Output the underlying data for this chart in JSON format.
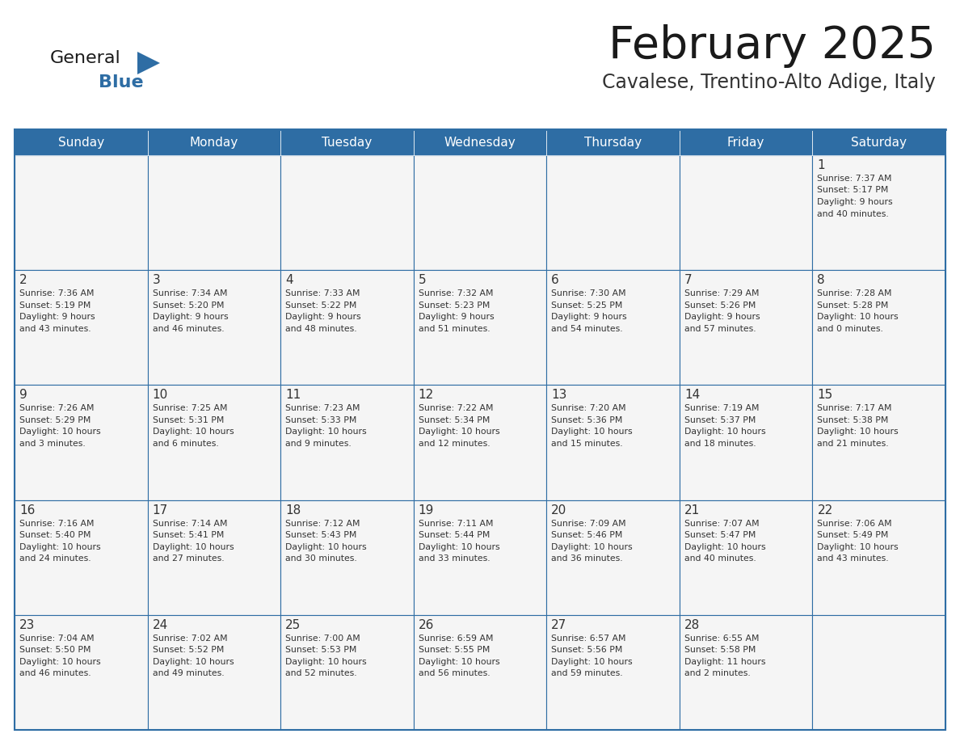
{
  "title": "February 2025",
  "subtitle": "Cavalese, Trentino-Alto Adige, Italy",
  "header_bg": "#2E6DA4",
  "header_text": "#FFFFFF",
  "cell_bg": "#F5F5F5",
  "cell_text": "#333333",
  "border_color": "#2E6DA4",
  "days_of_week": [
    "Sunday",
    "Monday",
    "Tuesday",
    "Wednesday",
    "Thursday",
    "Friday",
    "Saturday"
  ],
  "weeks": [
    [
      {
        "day": null,
        "info": ""
      },
      {
        "day": null,
        "info": ""
      },
      {
        "day": null,
        "info": ""
      },
      {
        "day": null,
        "info": ""
      },
      {
        "day": null,
        "info": ""
      },
      {
        "day": null,
        "info": ""
      },
      {
        "day": 1,
        "info": "Sunrise: 7:37 AM\nSunset: 5:17 PM\nDaylight: 9 hours\nand 40 minutes."
      }
    ],
    [
      {
        "day": 2,
        "info": "Sunrise: 7:36 AM\nSunset: 5:19 PM\nDaylight: 9 hours\nand 43 minutes."
      },
      {
        "day": 3,
        "info": "Sunrise: 7:34 AM\nSunset: 5:20 PM\nDaylight: 9 hours\nand 46 minutes."
      },
      {
        "day": 4,
        "info": "Sunrise: 7:33 AM\nSunset: 5:22 PM\nDaylight: 9 hours\nand 48 minutes."
      },
      {
        "day": 5,
        "info": "Sunrise: 7:32 AM\nSunset: 5:23 PM\nDaylight: 9 hours\nand 51 minutes."
      },
      {
        "day": 6,
        "info": "Sunrise: 7:30 AM\nSunset: 5:25 PM\nDaylight: 9 hours\nand 54 minutes."
      },
      {
        "day": 7,
        "info": "Sunrise: 7:29 AM\nSunset: 5:26 PM\nDaylight: 9 hours\nand 57 minutes."
      },
      {
        "day": 8,
        "info": "Sunrise: 7:28 AM\nSunset: 5:28 PM\nDaylight: 10 hours\nand 0 minutes."
      }
    ],
    [
      {
        "day": 9,
        "info": "Sunrise: 7:26 AM\nSunset: 5:29 PM\nDaylight: 10 hours\nand 3 minutes."
      },
      {
        "day": 10,
        "info": "Sunrise: 7:25 AM\nSunset: 5:31 PM\nDaylight: 10 hours\nand 6 minutes."
      },
      {
        "day": 11,
        "info": "Sunrise: 7:23 AM\nSunset: 5:33 PM\nDaylight: 10 hours\nand 9 minutes."
      },
      {
        "day": 12,
        "info": "Sunrise: 7:22 AM\nSunset: 5:34 PM\nDaylight: 10 hours\nand 12 minutes."
      },
      {
        "day": 13,
        "info": "Sunrise: 7:20 AM\nSunset: 5:36 PM\nDaylight: 10 hours\nand 15 minutes."
      },
      {
        "day": 14,
        "info": "Sunrise: 7:19 AM\nSunset: 5:37 PM\nDaylight: 10 hours\nand 18 minutes."
      },
      {
        "day": 15,
        "info": "Sunrise: 7:17 AM\nSunset: 5:38 PM\nDaylight: 10 hours\nand 21 minutes."
      }
    ],
    [
      {
        "day": 16,
        "info": "Sunrise: 7:16 AM\nSunset: 5:40 PM\nDaylight: 10 hours\nand 24 minutes."
      },
      {
        "day": 17,
        "info": "Sunrise: 7:14 AM\nSunset: 5:41 PM\nDaylight: 10 hours\nand 27 minutes."
      },
      {
        "day": 18,
        "info": "Sunrise: 7:12 AM\nSunset: 5:43 PM\nDaylight: 10 hours\nand 30 minutes."
      },
      {
        "day": 19,
        "info": "Sunrise: 7:11 AM\nSunset: 5:44 PM\nDaylight: 10 hours\nand 33 minutes."
      },
      {
        "day": 20,
        "info": "Sunrise: 7:09 AM\nSunset: 5:46 PM\nDaylight: 10 hours\nand 36 minutes."
      },
      {
        "day": 21,
        "info": "Sunrise: 7:07 AM\nSunset: 5:47 PM\nDaylight: 10 hours\nand 40 minutes."
      },
      {
        "day": 22,
        "info": "Sunrise: 7:06 AM\nSunset: 5:49 PM\nDaylight: 10 hours\nand 43 minutes."
      }
    ],
    [
      {
        "day": 23,
        "info": "Sunrise: 7:04 AM\nSunset: 5:50 PM\nDaylight: 10 hours\nand 46 minutes."
      },
      {
        "day": 24,
        "info": "Sunrise: 7:02 AM\nSunset: 5:52 PM\nDaylight: 10 hours\nand 49 minutes."
      },
      {
        "day": 25,
        "info": "Sunrise: 7:00 AM\nSunset: 5:53 PM\nDaylight: 10 hours\nand 52 minutes."
      },
      {
        "day": 26,
        "info": "Sunrise: 6:59 AM\nSunset: 5:55 PM\nDaylight: 10 hours\nand 56 minutes."
      },
      {
        "day": 27,
        "info": "Sunrise: 6:57 AM\nSunset: 5:56 PM\nDaylight: 10 hours\nand 59 minutes."
      },
      {
        "day": 28,
        "info": "Sunrise: 6:55 AM\nSunset: 5:58 PM\nDaylight: 11 hours\nand 2 minutes."
      },
      {
        "day": null,
        "info": ""
      }
    ]
  ],
  "logo_triangle_color": "#2E6DA4",
  "fig_width": 11.88,
  "fig_height": 9.18,
  "dpi": 100
}
